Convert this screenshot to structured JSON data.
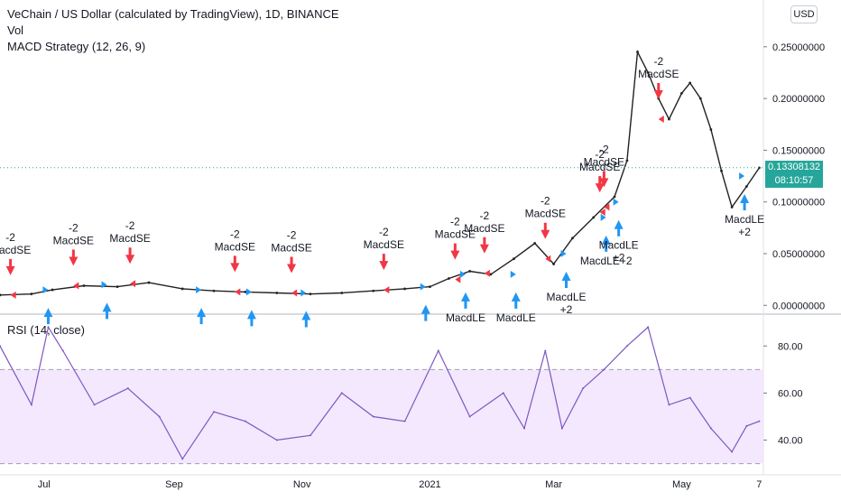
{
  "legend": {
    "main": "VeChain / US Dollar (calculated by TradingView), 1D, BINANCE",
    "vol": "Vol",
    "strategy": "MACD Strategy (12, 26, 9)",
    "rsi": "RSI (14, close)"
  },
  "currency_button": "USD",
  "last_price": {
    "value": "0.13308132",
    "countdown": "08:10:57"
  },
  "colors": {
    "up_arrow": "#2196f3",
    "down_arrow": "#f23645",
    "rsi_line": "#7e57c2",
    "rsi_band": "#f3e8fd",
    "price_tag": "#26a69a"
  },
  "chart_data": [
    {
      "type": "line",
      "y_scale": "linear",
      "ylim": [
        -0.005,
        0.29
      ],
      "y_ticks": [
        "0.25000000",
        "0.20000000",
        "0.15000000",
        "0.10000000",
        "0.05000000",
        "0.00000000"
      ],
      "y_tick_values": [
        0.25,
        0.2,
        0.15,
        0.1,
        0.05,
        0.0
      ],
      "x_range": [
        "2020-06-10",
        "2021-06-09"
      ],
      "x_ticks": [
        {
          "label": "Jul",
          "date": "2020-07-01"
        },
        {
          "label": "Sep",
          "date": "2020-09-01"
        },
        {
          "label": "Nov",
          "date": "2020-11-01"
        },
        {
          "label": "2021",
          "date": "2021-01-01"
        },
        {
          "label": "Mar",
          "date": "2021-03-01"
        },
        {
          "label": "May",
          "date": "2021-05-01"
        },
        {
          "label": "7",
          "date": "2021-06-07"
        }
      ],
      "series": [
        {
          "x": [
            "2020-06-10",
            "2020-06-25",
            "2020-07-05",
            "2020-07-20",
            "2020-08-05",
            "2020-08-20",
            "2020-09-05",
            "2020-09-20",
            "2020-10-05",
            "2020-10-20",
            "2020-11-05",
            "2020-11-20",
            "2020-12-05",
            "2020-12-20",
            "2021-01-01",
            "2021-01-10",
            "2021-01-20",
            "2021-01-30",
            "2021-02-10",
            "2021-02-20",
            "2021-03-01",
            "2021-03-10",
            "2021-03-20",
            "2021-03-30",
            "2021-04-05",
            "2021-04-10",
            "2021-04-15",
            "2021-04-20",
            "2021-04-25",
            "2021-05-01",
            "2021-05-05",
            "2021-05-10",
            "2021-05-15",
            "2021-05-20",
            "2021-05-25",
            "2021-06-01",
            "2021-06-07"
          ],
          "values": [
            0.01,
            0.011,
            0.015,
            0.019,
            0.018,
            0.022,
            0.016,
            0.014,
            0.013,
            0.012,
            0.011,
            0.012,
            0.014,
            0.016,
            0.018,
            0.026,
            0.033,
            0.03,
            0.045,
            0.06,
            0.04,
            0.065,
            0.085,
            0.105,
            0.14,
            0.245,
            0.225,
            0.2,
            0.18,
            0.205,
            0.215,
            0.2,
            0.17,
            0.13,
            0.095,
            0.115,
            0.133
          ]
        }
      ],
      "current_value": 0.13308132,
      "signals": [
        {
          "date": "2020-06-15",
          "kind": "short",
          "label": "MacdSE",
          "qty": "-2",
          "value": 0.01
        },
        {
          "date": "2020-07-03",
          "kind": "long",
          "label": "",
          "qty": "",
          "value": 0.015
        },
        {
          "date": "2020-07-15",
          "kind": "short",
          "label": "MacdSE",
          "qty": "-2",
          "value": 0.019
        },
        {
          "date": "2020-07-31",
          "kind": "long",
          "label": "",
          "qty": "",
          "value": 0.02
        },
        {
          "date": "2020-08-11",
          "kind": "short",
          "label": "MacdSE",
          "qty": "-2",
          "value": 0.021
        },
        {
          "date": "2020-09-14",
          "kind": "long",
          "label": "",
          "qty": "",
          "value": 0.015
        },
        {
          "date": "2020-09-30",
          "kind": "short",
          "label": "MacdSE",
          "qty": "-2",
          "value": 0.013
        },
        {
          "date": "2020-10-08",
          "kind": "long",
          "label": "",
          "qty": "",
          "value": 0.013
        },
        {
          "date": "2020-10-27",
          "kind": "short",
          "label": "MacdSE",
          "qty": "-2",
          "value": 0.012
        },
        {
          "date": "2020-11-03",
          "kind": "long",
          "label": "",
          "qty": "",
          "value": 0.012
        },
        {
          "date": "2020-12-10",
          "kind": "short",
          "label": "MacdSE",
          "qty": "-2",
          "value": 0.015
        },
        {
          "date": "2020-12-30",
          "kind": "long",
          "label": "",
          "qty": "",
          "value": 0.018
        },
        {
          "date": "2021-01-13",
          "kind": "short",
          "label": "MacdSE",
          "qty": "-2",
          "value": 0.025
        },
        {
          "date": "2021-01-18",
          "kind": "long",
          "label": "MacdLE",
          "qty": "",
          "value": 0.03
        },
        {
          "date": "2021-01-27",
          "kind": "short",
          "label": "MacdSE",
          "qty": "-2",
          "value": 0.031
        },
        {
          "date": "2021-02-11",
          "kind": "long",
          "label": "MacdLE",
          "qty": "",
          "value": 0.03
        },
        {
          "date": "2021-02-25",
          "kind": "short",
          "label": "MacdSE",
          "qty": "-2",
          "value": 0.045
        },
        {
          "date": "2021-03-07",
          "kind": "long",
          "label": "MacdLE",
          "qty": "+2",
          "value": 0.05
        },
        {
          "date": "2021-03-23",
          "kind": "short",
          "label": "MacdSE",
          "qty": "-2",
          "value": 0.09
        },
        {
          "date": "2021-03-25",
          "kind": "short",
          "label": "MacdSE",
          "qty": "-2",
          "value": 0.095
        },
        {
          "date": "2021-03-26",
          "kind": "long",
          "label": "MacdLE+2",
          "qty": "",
          "value": 0.085
        },
        {
          "date": "2021-04-01",
          "kind": "long",
          "label": "MacdLE",
          "qty": "+2",
          "value": 0.1
        },
        {
          "date": "2021-04-20",
          "kind": "short",
          "label": "MacdSE",
          "qty": "-2",
          "value": 0.18
        },
        {
          "date": "2021-05-31",
          "kind": "long",
          "label": "MacdLE",
          "qty": "+2",
          "value": 0.125
        }
      ]
    },
    {
      "type": "line",
      "title": "RSI (14, close)",
      "ylim": [
        26,
        92
      ],
      "y_ticks": [
        "80.00",
        "60.00",
        "40.00"
      ],
      "y_tick_values": [
        80,
        60,
        40
      ],
      "band": [
        30,
        70
      ],
      "x_range": [
        "2020-06-10",
        "2021-06-09"
      ],
      "series": [
        {
          "x": [
            "2020-06-10",
            "2020-06-25",
            "2020-07-03",
            "2020-07-10",
            "2020-07-25",
            "2020-08-10",
            "2020-08-25",
            "2020-09-05",
            "2020-09-20",
            "2020-10-05",
            "2020-10-20",
            "2020-11-05",
            "2020-11-20",
            "2020-12-05",
            "2020-12-20",
            "2021-01-05",
            "2021-01-20",
            "2021-02-05",
            "2021-02-15",
            "2021-02-25",
            "2021-03-05",
            "2021-03-15",
            "2021-03-25",
            "2021-04-05",
            "2021-04-15",
            "2021-04-25",
            "2021-05-05",
            "2021-05-15",
            "2021-05-25",
            "2021-06-01",
            "2021-06-07"
          ],
          "values": [
            80,
            55,
            88,
            78,
            55,
            62,
            50,
            32,
            52,
            48,
            40,
            42,
            60,
            50,
            48,
            78,
            50,
            60,
            45,
            78,
            45,
            62,
            70,
            80,
            88,
            55,
            58,
            45,
            35,
            46,
            48
          ]
        }
      ]
    }
  ]
}
